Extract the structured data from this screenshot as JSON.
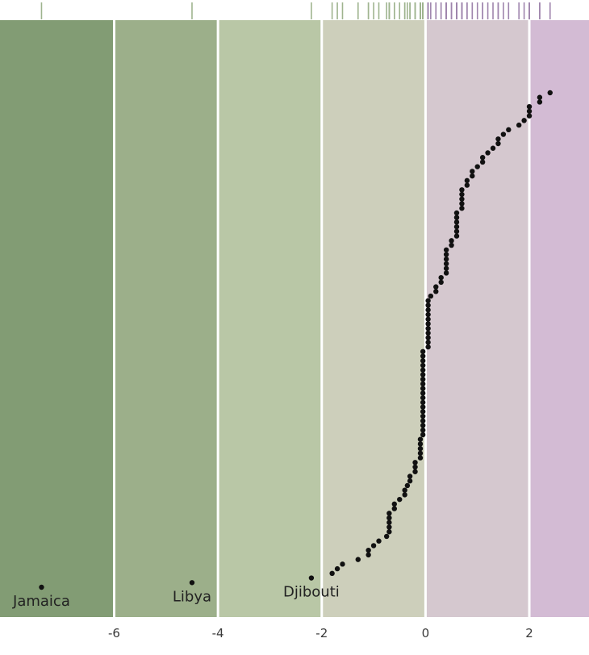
{
  "chart_data": {
    "type": "scatter",
    "title": "",
    "xlabel": "",
    "ylabel": "",
    "xlim": [
      -8.2,
      3.15
    ],
    "x_ticks": [
      -6,
      -4,
      -2,
      0,
      2
    ],
    "x_tick_labels": [
      "-6",
      "-4",
      "-2",
      "0",
      "2"
    ],
    "background_bands": [
      {
        "from": -8.2,
        "to": -6,
        "color": "#829c74"
      },
      {
        "from": -6,
        "to": -4,
        "color": "#9caf8a"
      },
      {
        "from": -4,
        "to": -2,
        "color": "#b9c7a6"
      },
      {
        "from": -2,
        "to": 0,
        "color": "#cdcfbb"
      },
      {
        "from": 0,
        "to": 2,
        "color": "#d5c8cf"
      },
      {
        "from": 2,
        "to": 3.15,
        "color": "#d3bbd4"
      }
    ],
    "band_separator_color": "#ffffff",
    "rug": {
      "negative_color": "#9fb48f",
      "positive_color": "#9f85ad"
    },
    "point_color": "#111111",
    "labeled_points": [
      {
        "name": "Jamaica",
        "x": -7.4
      },
      {
        "name": "Libya",
        "x": -4.5
      },
      {
        "name": "Djibouti",
        "x": -2.2
      }
    ],
    "values": [
      -7.4,
      -4.5,
      -2.2,
      -1.8,
      -1.7,
      -1.6,
      -1.3,
      -1.1,
      -1.1,
      -1.0,
      -0.9,
      -0.75,
      -0.7,
      -0.7,
      -0.7,
      -0.7,
      -0.7,
      -0.6,
      -0.6,
      -0.5,
      -0.4,
      -0.4,
      -0.35,
      -0.3,
      -0.3,
      -0.2,
      -0.2,
      -0.2,
      -0.1,
      -0.1,
      -0.1,
      -0.1,
      -0.1,
      -0.05,
      -0.05,
      -0.05,
      -0.05,
      -0.05,
      -0.05,
      -0.05,
      -0.05,
      -0.05,
      -0.05,
      -0.05,
      -0.05,
      -0.05,
      -0.05,
      -0.05,
      -0.05,
      -0.05,
      -0.05,
      -0.05,
      0.05,
      0.05,
      0.05,
      0.05,
      0.05,
      0.05,
      0.05,
      0.05,
      0.05,
      0.05,
      0.05,
      0.1,
      0.2,
      0.2,
      0.3,
      0.3,
      0.4,
      0.4,
      0.4,
      0.4,
      0.4,
      0.4,
      0.5,
      0.5,
      0.6,
      0.6,
      0.6,
      0.6,
      0.6,
      0.6,
      0.7,
      0.7,
      0.7,
      0.7,
      0.7,
      0.8,
      0.8,
      0.9,
      0.9,
      1.0,
      1.1,
      1.1,
      1.2,
      1.3,
      1.4,
      1.4,
      1.5,
      1.6,
      1.8,
      1.9,
      2.0,
      2.0,
      2.0,
      2.2,
      2.2,
      2.4
    ]
  }
}
